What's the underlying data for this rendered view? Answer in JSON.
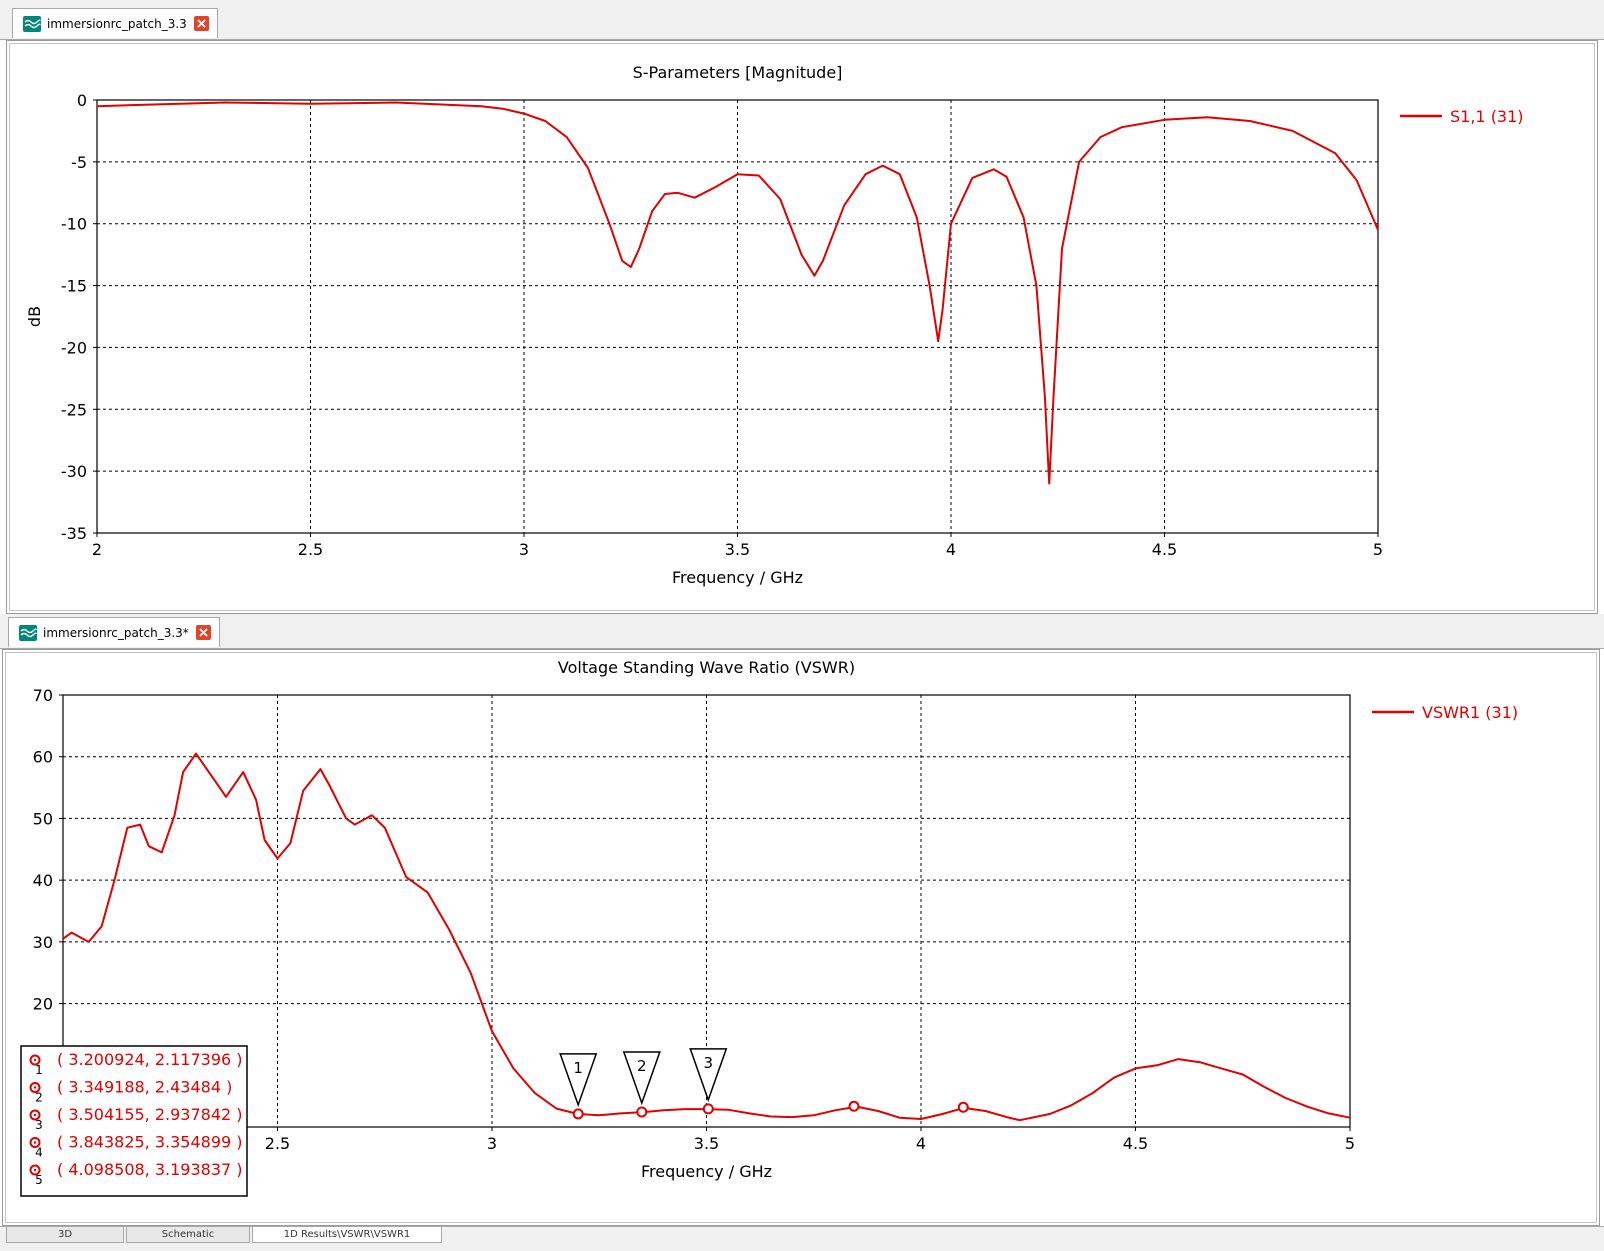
{
  "tabs": {
    "top": {
      "label": "immersionrc_patch_3.3"
    },
    "bottom": {
      "label": "immersionrc_patch_3.3*"
    }
  },
  "bottom_tabs": [
    "3D",
    "Schematic",
    "1D Results\\VSWR\\VSWR1"
  ],
  "colors": {
    "series": "#e00000",
    "grid": "#000000",
    "tab_icon": "#00897b",
    "close": "#e0452b"
  },
  "chart_data": [
    {
      "type": "line",
      "title": "S-Parameters [Magnitude]",
      "xlabel": "Frequency / GHz",
      "ylabel": "dB",
      "xlim": [
        2,
        5
      ],
      "ylim": [
        -35,
        0
      ],
      "xticks": [
        2,
        2.5,
        3,
        3.5,
        4,
        4.5,
        5
      ],
      "yticks": [
        0,
        -5,
        -10,
        -15,
        -20,
        -25,
        -30,
        -35
      ],
      "grid": true,
      "legend": "top-right",
      "series": [
        {
          "name": "S1,1 (31)",
          "x": [
            2.0,
            2.1,
            2.3,
            2.5,
            2.7,
            2.9,
            2.95,
            3.0,
            3.05,
            3.1,
            3.15,
            3.2,
            3.23,
            3.25,
            3.27,
            3.3,
            3.33,
            3.36,
            3.4,
            3.45,
            3.5,
            3.55,
            3.6,
            3.65,
            3.68,
            3.7,
            3.75,
            3.8,
            3.84,
            3.88,
            3.92,
            3.95,
            3.97,
            3.98,
            4.0,
            4.05,
            4.1,
            4.13,
            4.17,
            4.2,
            4.22,
            4.23,
            4.24,
            4.26,
            4.3,
            4.35,
            4.4,
            4.5,
            4.6,
            4.7,
            4.8,
            4.9,
            4.95,
            5.0
          ],
          "values": [
            -0.5,
            -0.4,
            -0.2,
            -0.3,
            -0.2,
            -0.5,
            -0.7,
            -1.1,
            -1.7,
            -3.0,
            -5.5,
            -10.0,
            -13.0,
            -13.5,
            -12.0,
            -9.0,
            -7.6,
            -7.5,
            -7.9,
            -7.0,
            -6.0,
            -6.1,
            -8.0,
            -12.5,
            -14.2,
            -13.0,
            -8.5,
            -6.0,
            -5.3,
            -6.0,
            -9.5,
            -15.0,
            -19.5,
            -17.0,
            -10.0,
            -6.3,
            -5.6,
            -6.2,
            -9.5,
            -15.0,
            -24.0,
            -31.0,
            -24.0,
            -12.0,
            -5.0,
            -3.0,
            -2.2,
            -1.6,
            -1.4,
            -1.7,
            -2.5,
            -4.3,
            -6.5,
            -10.5
          ]
        }
      ]
    },
    {
      "type": "line",
      "title": "Voltage Standing Wave Ratio (VSWR)",
      "xlabel": "Frequency / GHz",
      "ylabel": "",
      "xlim": [
        2,
        5
      ],
      "ylim": [
        0,
        70
      ],
      "xticks": [
        2.5,
        3,
        3.5,
        4,
        4.5,
        5
      ],
      "yticks": [
        70,
        60,
        50,
        40,
        30,
        20
      ],
      "grid": true,
      "legend": "top-right",
      "series": [
        {
          "name": "VSWR1 (31)",
          "x": [
            2.0,
            2.02,
            2.06,
            2.09,
            2.12,
            2.15,
            2.18,
            2.2,
            2.23,
            2.26,
            2.28,
            2.31,
            2.35,
            2.38,
            2.42,
            2.45,
            2.47,
            2.5,
            2.53,
            2.56,
            2.6,
            2.62,
            2.66,
            2.68,
            2.72,
            2.75,
            2.8,
            2.85,
            2.9,
            2.95,
            3.0,
            3.05,
            3.1,
            3.15,
            3.2,
            3.25,
            3.3,
            3.35,
            3.4,
            3.45,
            3.5,
            3.55,
            3.6,
            3.65,
            3.7,
            3.75,
            3.8,
            3.85,
            3.9,
            3.95,
            4.0,
            4.05,
            4.1,
            4.15,
            4.2,
            4.23,
            4.3,
            4.35,
            4.4,
            4.45,
            4.5,
            4.55,
            4.6,
            4.65,
            4.7,
            4.75,
            4.8,
            4.85,
            4.9,
            4.95,
            5.0
          ],
          "values": [
            30.5,
            31.5,
            30.0,
            32.5,
            40.0,
            48.5,
            49.0,
            45.5,
            44.5,
            50.5,
            57.5,
            60.5,
            56.5,
            53.5,
            57.5,
            53.0,
            46.5,
            43.5,
            46.0,
            54.5,
            58.0,
            55.5,
            50.0,
            49.0,
            50.5,
            48.5,
            40.5,
            38.0,
            32.0,
            25.0,
            15.5,
            9.5,
            5.5,
            3.0,
            2.1,
            1.9,
            2.2,
            2.4,
            2.7,
            2.9,
            2.9,
            2.8,
            2.2,
            1.7,
            1.6,
            1.9,
            2.7,
            3.3,
            2.6,
            1.5,
            1.3,
            2.1,
            3.1,
            2.6,
            1.6,
            1.1,
            2.1,
            3.5,
            5.5,
            8.0,
            9.5,
            10.0,
            11.0,
            10.5,
            9.5,
            8.5,
            6.5,
            4.7,
            3.3,
            2.2,
            1.5
          ]
        }
      ],
      "markers": [
        {
          "id": "1",
          "x": 3.200924,
          "y": 2.117396,
          "label": "( 3.200924, 2.117396 )"
        },
        {
          "id": "2",
          "x": 3.349188,
          "y": 2.43484,
          "label": "( 3.349188, 2.43484 )"
        },
        {
          "id": "3",
          "x": 3.504155,
          "y": 2.937842,
          "label": "( 3.504155, 2.937842 )"
        },
        {
          "id": "4",
          "x": 3.843825,
          "y": 3.354899,
          "label": "( 3.843825, 3.354899 )"
        },
        {
          "id": "5",
          "x": 4.098508,
          "y": 3.193837,
          "label": "( 4.098508, 3.193837 )"
        }
      ],
      "visible_marker_flags": [
        "1",
        "2",
        "3"
      ]
    }
  ]
}
